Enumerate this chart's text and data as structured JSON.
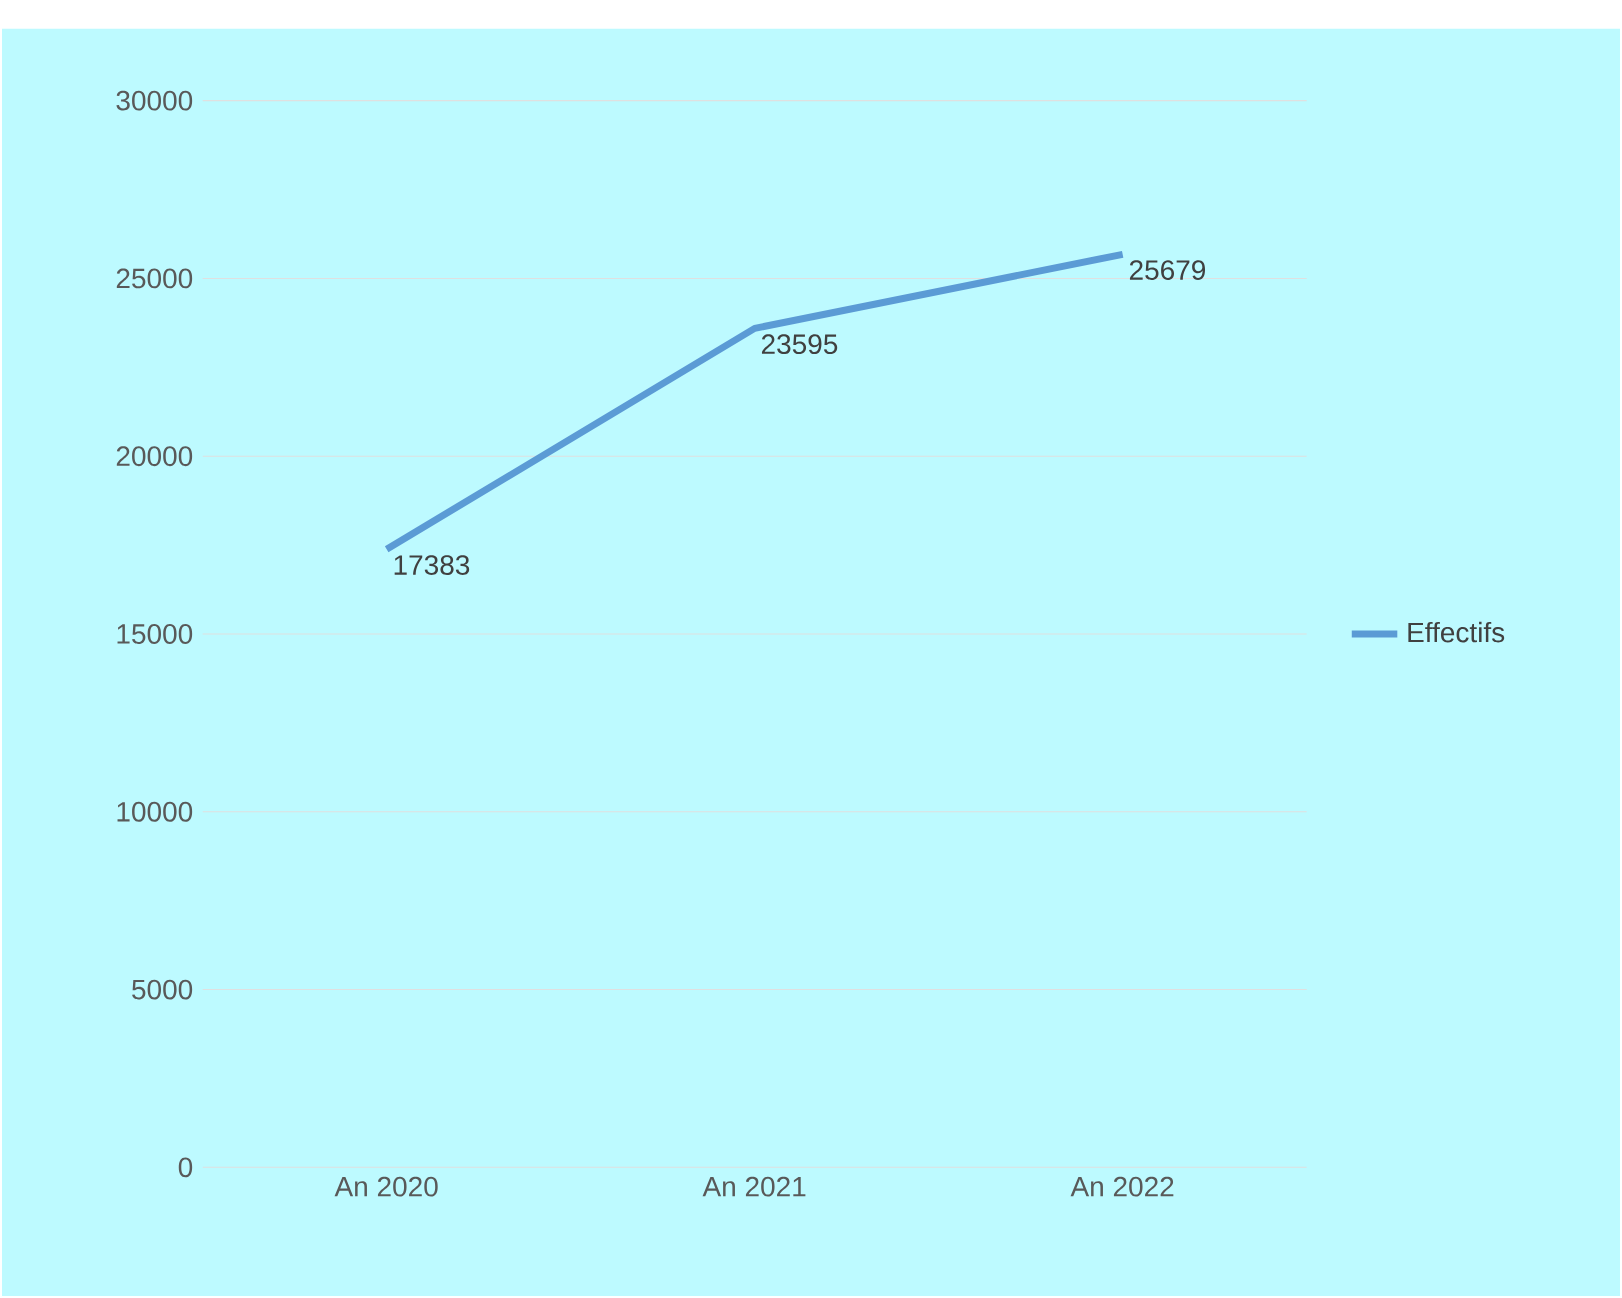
{
  "chart_data": {
    "type": "line",
    "categories": [
      "An 2020",
      "An 2021",
      "An 2022"
    ],
    "series": [
      {
        "name": "Effectifs",
        "color": "#5b9bd5",
        "values": [
          17383,
          23595,
          25679
        ]
      }
    ],
    "ylim": [
      0,
      30000
    ],
    "yticks": [
      0,
      5000,
      10000,
      15000,
      20000,
      25000,
      30000
    ],
    "grid": "y",
    "legend": "right",
    "data_labels": true,
    "marker": "none",
    "line_style": "solid"
  }
}
